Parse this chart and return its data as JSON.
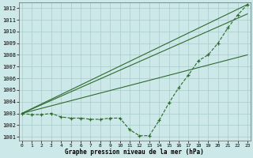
{
  "xlabel": "Graphe pression niveau de la mer (hPa)",
  "ylim": [
    1000.7,
    1012.5
  ],
  "xlim": [
    -0.3,
    23.3
  ],
  "yticks": [
    1001,
    1002,
    1003,
    1004,
    1005,
    1006,
    1007,
    1008,
    1009,
    1010,
    1011,
    1012
  ],
  "xticks": [
    0,
    1,
    2,
    3,
    4,
    5,
    6,
    7,
    8,
    9,
    10,
    11,
    12,
    13,
    14,
    15,
    16,
    17,
    18,
    19,
    20,
    21,
    22,
    23
  ],
  "bg_color": "#cce8e8",
  "grid_color": "#aacccc",
  "line_color": "#2d6a2d",
  "line_main": {
    "x": [
      0,
      1,
      2,
      3,
      4,
      5,
      6,
      7,
      8,
      9,
      10,
      11,
      12,
      13,
      14,
      15,
      16,
      17,
      18,
      19,
      20,
      21,
      22,
      23
    ],
    "y": [
      1003.0,
      1002.9,
      1002.9,
      1003.0,
      1002.7,
      1002.6,
      1002.6,
      1002.5,
      1002.5,
      1002.6,
      1002.6,
      1001.6,
      1001.1,
      1001.1,
      1002.4,
      1003.9,
      1005.2,
      1006.3,
      1007.5,
      1008.0,
      1009.0,
      1010.3,
      1011.4,
      1012.3
    ]
  },
  "line_straight1": {
    "x": [
      0,
      23
    ],
    "y": [
      1003.0,
      1012.3
    ]
  },
  "line_straight2": {
    "x": [
      0,
      23
    ],
    "y": [
      1003.0,
      1011.5
    ]
  },
  "line_straight3": {
    "x": [
      0,
      23
    ],
    "y": [
      1003.0,
      1008.0
    ]
  }
}
